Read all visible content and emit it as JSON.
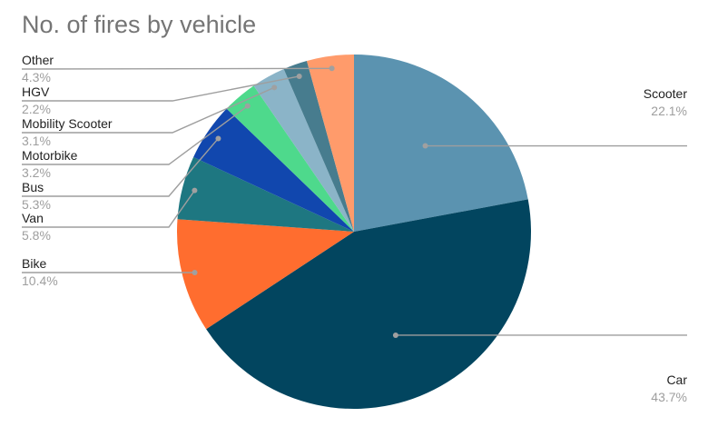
{
  "chart_data": {
    "type": "pie",
    "title": "No. of fires by vehicle",
    "categories": [
      "Scooter",
      "Car",
      "Bike",
      "Van",
      "Bus",
      "Motorbike",
      "Mobility Scooter",
      "HGV",
      "Other"
    ],
    "values": [
      22.1,
      43.7,
      10.4,
      5.8,
      5.3,
      3.2,
      3.1,
      2.2,
      4.3
    ],
    "value_labels": [
      "22.1%",
      "43.7%",
      "10.4%",
      "5.8%",
      "5.3%",
      "3.2%",
      "3.1%",
      "2.2%",
      "4.3%"
    ],
    "colors": [
      "#5b93b0",
      "#02455f",
      "#ff6d2f",
      "#1e7781",
      "#1147ae",
      "#4ed98c",
      "#8bb4c8",
      "#477c8e",
      "#ff9b6b"
    ],
    "start_angle": "12 o'clock, clockwise",
    "legend_position": "labeled leader lines"
  },
  "labels": {
    "right": [
      {
        "name": "Scooter",
        "pct": "22.1%",
        "index": 0
      },
      {
        "name": "Car",
        "pct": "43.7%",
        "index": 1
      }
    ],
    "left": [
      {
        "name": "Other",
        "pct": "4.3%",
        "index": 8
      },
      {
        "name": "HGV",
        "pct": "2.2%",
        "index": 7
      },
      {
        "name": "Mobility Scooter",
        "pct": "3.1%",
        "index": 6
      },
      {
        "name": "Motorbike",
        "pct": "3.2%",
        "index": 5
      },
      {
        "name": "Bus",
        "pct": "5.3%",
        "index": 4
      },
      {
        "name": "Van",
        "pct": "5.8%",
        "index": 3
      },
      {
        "name": "Bike",
        "pct": "10.4%",
        "index": 2
      }
    ]
  }
}
